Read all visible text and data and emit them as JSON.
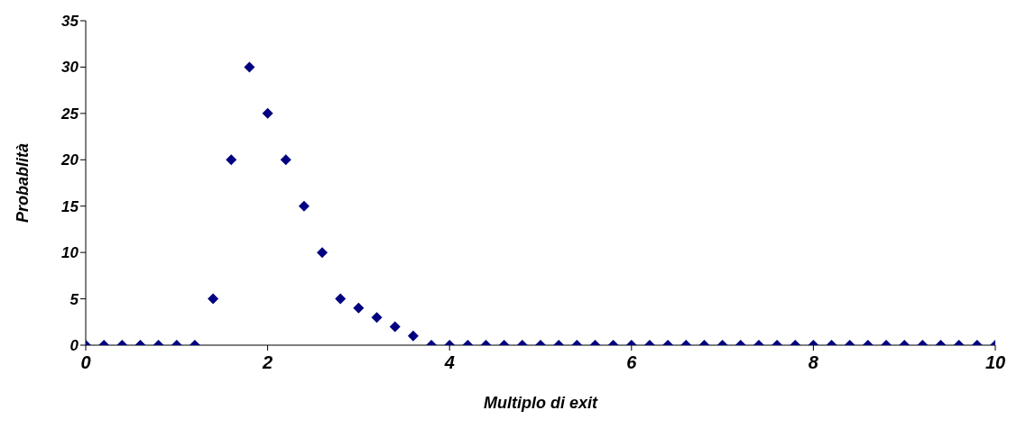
{
  "chart_data": {
    "type": "scatter",
    "xlabel": "Multiplo di exit",
    "ylabel": "Probablità",
    "x": [
      0,
      0.2,
      0.4,
      0.6,
      0.8,
      1,
      1.2,
      1.4,
      1.6,
      1.8,
      2,
      2.2,
      2.4,
      2.6,
      2.8,
      3,
      3.2,
      3.4,
      3.6,
      3.8,
      4,
      4.2,
      4.4,
      4.6,
      4.8,
      5,
      5.2,
      5.4,
      5.6,
      5.8,
      6,
      6.2,
      6.4,
      6.6,
      6.8,
      7,
      7.2,
      7.4,
      7.6,
      7.8,
      8,
      8.2,
      8.4,
      8.6,
      8.8,
      9,
      9.2,
      9.4,
      9.6,
      9.8,
      10
    ],
    "series": [
      {
        "color": "#000080",
        "values": [
          0,
          0,
          0,
          0,
          0,
          0,
          0,
          5,
          20,
          30,
          25,
          20,
          15,
          10,
          5,
          4,
          3,
          2,
          1,
          0,
          0,
          0,
          0,
          0,
          0,
          0,
          0,
          0,
          0,
          0,
          0,
          0,
          0,
          0,
          0,
          0,
          0,
          0,
          0,
          0,
          0,
          0,
          0,
          0,
          0,
          0,
          0,
          0,
          0,
          0,
          0
        ]
      }
    ],
    "xlim": [
      0,
      10
    ],
    "xticks": [
      0,
      2,
      4,
      6,
      8,
      10
    ],
    "ylim": [
      0,
      35
    ],
    "yticks": [
      0,
      5,
      10,
      15,
      20,
      25,
      30,
      35
    ],
    "marker": "diamond"
  }
}
